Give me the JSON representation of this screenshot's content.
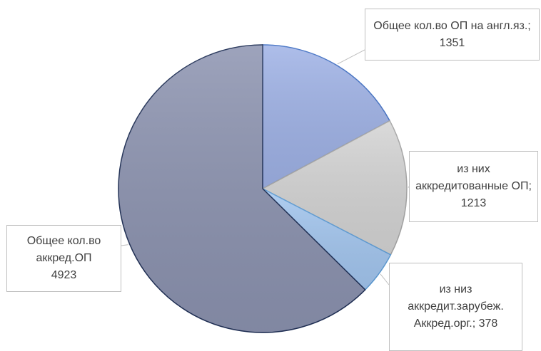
{
  "chart_data": {
    "type": "pie",
    "categories": [
      "Общее кол.во ОП на англ.яз.;",
      "из них аккредитованные ОП;",
      "из низ аккредит.зарубеж. Аккред.орг.;",
      "Общее кол.во аккред.ОП"
    ],
    "values": [
      1351,
      1213,
      378,
      4923
    ],
    "colors": [
      "#9fb2e6",
      "#d4d4d4",
      "#a3c6ef",
      "#8c93b0"
    ],
    "edge_colors": [
      "#4472c4",
      "#a5a5a5",
      "#5b9bd5",
      "#1f2f55"
    ]
  }
}
